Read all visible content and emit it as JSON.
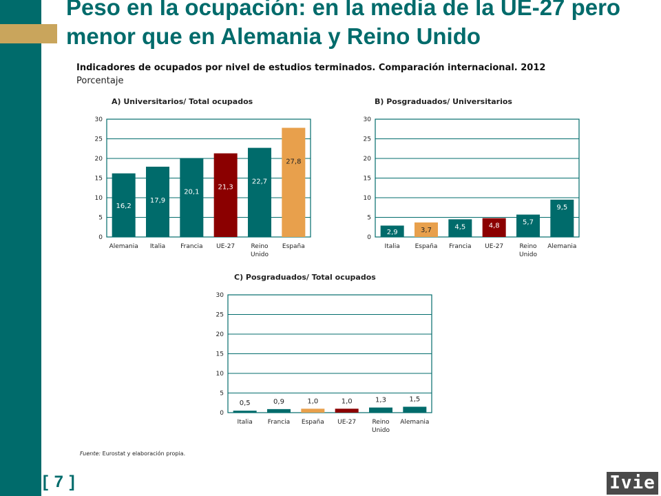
{
  "page": {
    "title": "Peso en la ocupación: en la media de la UE-27 pero menor que en Alemania y Reino Unido",
    "subtitle": "Indicadores de ocupados por nivel de estudios terminados. Comparación internacional. 2012",
    "unit": "Porcentaje",
    "source_label": "Fuente:",
    "source_text": "Eurostat y elaboración propia.",
    "page_number": "[ 7 ]",
    "logo": "Ivie"
  },
  "colors": {
    "teal": "#006b6b",
    "espana": "#e8a04c",
    "ue27": "#8b0000",
    "gold": "#c9a55c"
  },
  "chart_data": [
    {
      "type": "bar",
      "title": "A) Universitarios/ Total ocupados",
      "categories": [
        "Alemania",
        "Italia",
        "Francia",
        "UE-27",
        "Reino Unido",
        "España"
      ],
      "values": [
        16.2,
        17.9,
        20.1,
        21.3,
        22.7,
        27.8
      ],
      "labels": [
        "16,2",
        "17,9",
        "20,1",
        "21,3",
        "22,7",
        "27,8"
      ],
      "colors": [
        "#006b6b",
        "#006b6b",
        "#006b6b",
        "#8b0000",
        "#006b6b",
        "#e8a04c"
      ],
      "yticks": [
        0,
        5,
        10,
        15,
        20,
        25,
        30
      ],
      "ylim": [
        0,
        30
      ],
      "grid": true
    },
    {
      "type": "bar",
      "title": "B) Posgraduados/ Universitarios",
      "categories": [
        "Italia",
        "España",
        "Francia",
        "UE-27",
        "Reino Unido",
        "Alemania"
      ],
      "values": [
        2.9,
        3.7,
        4.5,
        4.8,
        5.7,
        9.5
      ],
      "labels": [
        "2,9",
        "3,7",
        "4,5",
        "4,8",
        "5,7",
        "9,5"
      ],
      "colors": [
        "#006b6b",
        "#e8a04c",
        "#006b6b",
        "#8b0000",
        "#006b6b",
        "#006b6b"
      ],
      "yticks": [
        0,
        5,
        10,
        15,
        20,
        25,
        30
      ],
      "ylim": [
        0,
        30
      ],
      "grid": true
    },
    {
      "type": "bar",
      "title": "C) Posgraduados/ Total ocupados",
      "categories": [
        "Italia",
        "Francia",
        "España",
        "UE-27",
        "Reino Unido",
        "Alemania"
      ],
      "values": [
        0.5,
        0.9,
        1.0,
        1.0,
        1.3,
        1.5
      ],
      "labels": [
        "0,5",
        "0,9",
        "1,0",
        "1,0",
        "1,3",
        "1,5"
      ],
      "colors": [
        "#006b6b",
        "#006b6b",
        "#e8a04c",
        "#8b0000",
        "#006b6b",
        "#006b6b"
      ],
      "yticks": [
        0,
        5,
        10,
        15,
        20,
        25,
        30
      ],
      "ylim": [
        0,
        30
      ],
      "grid": true
    }
  ]
}
